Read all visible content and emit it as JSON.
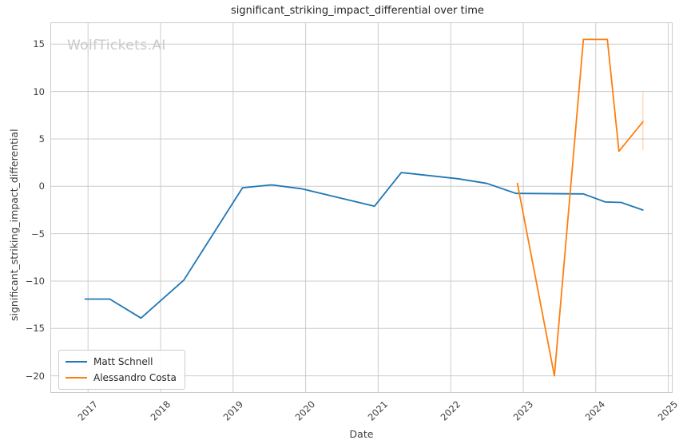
{
  "figure": {
    "watermark": "WolfTickets.AI"
  },
  "chart_data": {
    "type": "line",
    "title": "significant_striking_impact_differential over time",
    "xlabel": "Date",
    "ylabel": "significant_striking_impact_differential",
    "grid": true,
    "legend_position": "lower-left",
    "xlim": [
      2016.48,
      2025.06
    ],
    "ylim": [
      -21.8,
      17.3
    ],
    "x_ticks": [
      {
        "value": 2017,
        "label": "2017"
      },
      {
        "value": 2018,
        "label": "2018"
      },
      {
        "value": 2019,
        "label": "2019"
      },
      {
        "value": 2020,
        "label": "2020"
      },
      {
        "value": 2021,
        "label": "2021"
      },
      {
        "value": 2022,
        "label": "2022"
      },
      {
        "value": 2023,
        "label": "2023"
      },
      {
        "value": 2024,
        "label": "2024"
      },
      {
        "value": 2025,
        "label": "2025"
      }
    ],
    "y_ticks": [
      {
        "value": 15,
        "label": "15"
      },
      {
        "value": 10,
        "label": "10"
      },
      {
        "value": 5,
        "label": "5"
      },
      {
        "value": 0,
        "label": "0"
      },
      {
        "value": -5,
        "label": "−5"
      },
      {
        "value": -10,
        "label": "−10"
      },
      {
        "value": -15,
        "label": "−15"
      },
      {
        "value": -20,
        "label": "−20"
      }
    ],
    "series": [
      {
        "name": "Matt Schnell",
        "color": "#1f77b4",
        "points": [
          [
            2016.96,
            -11.9
          ],
          [
            2017.3,
            -11.9
          ],
          [
            2017.73,
            -13.9
          ],
          [
            2018.32,
            -9.9
          ],
          [
            2019.13,
            -0.15
          ],
          [
            2019.53,
            0.15
          ],
          [
            2019.94,
            -0.25
          ],
          [
            2020.95,
            -2.1
          ],
          [
            2021.32,
            1.45
          ],
          [
            2022.1,
            0.8
          ],
          [
            2022.5,
            0.3
          ],
          [
            2022.9,
            -0.75
          ],
          [
            2023.83,
            -0.8
          ],
          [
            2024.13,
            -1.65
          ],
          [
            2024.35,
            -1.7
          ],
          [
            2024.65,
            -2.5
          ]
        ]
      },
      {
        "name": "Alessandro Costa",
        "color": "#ff7f0e",
        "points": [
          [
            2022.92,
            0.3
          ],
          [
            2023.43,
            -20.0
          ],
          [
            2023.83,
            15.5
          ],
          [
            2024.16,
            15.5
          ],
          [
            2024.32,
            3.7
          ],
          [
            2024.65,
            6.8
          ]
        ]
      }
    ],
    "error_bar": {
      "x": 2024.65,
      "y_low": 3.8,
      "y_high": 9.9,
      "color": "#ff7f0e",
      "opacity": 0.3
    }
  }
}
